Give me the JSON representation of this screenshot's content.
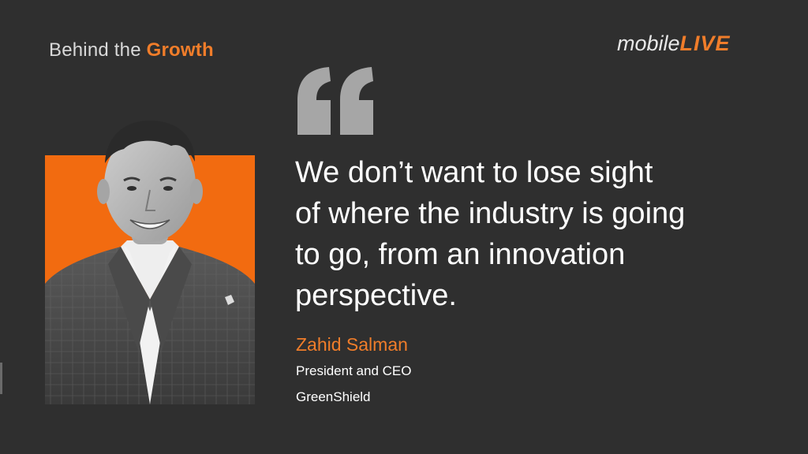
{
  "header": {
    "series_prefix": "Behind the ",
    "series_highlight": "Growth"
  },
  "logo": {
    "mobile": "mobile",
    "live": "LIVE"
  },
  "quote": {
    "lines": [
      "We don’t want to lose sight",
      "of where the industry is going",
      "to go, from an innovation",
      "perspective."
    ]
  },
  "speaker": {
    "name": "Zahid Salman",
    "title": "President and CEO",
    "company": "GreenShield"
  },
  "colors": {
    "background": "#2f2f2f",
    "accent": "#f07d2a",
    "quote_mark": "#a6a6a6",
    "text": "#ffffff"
  },
  "icons": {
    "quote_mark": "quote-mark-icon",
    "portrait": "speaker-portrait"
  }
}
